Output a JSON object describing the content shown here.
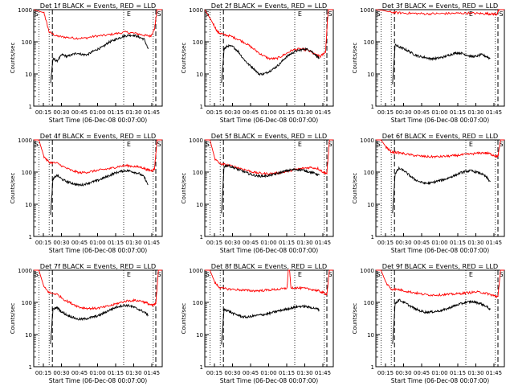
{
  "chart_data": [
    {
      "type": "line",
      "title": "Det 1f BLACK = Events, RED = LLD",
      "ylabel": "Counts/sec",
      "xlabel": "Start Time (06-Dec-08 00:07:00)",
      "yscale": "log",
      "ylim": [
        1,
        1000
      ],
      "xlim": [
        "00:07",
        "01:48"
      ],
      "x_ticks": [
        "00:15",
        "00:30",
        "00:45",
        "01:00",
        "01:15",
        "01:30",
        "01:45"
      ],
      "y_ticks": [
        "1",
        "10",
        "100",
        "1000"
      ],
      "markers": [
        "S",
        "E",
        "S"
      ],
      "series": [
        {
          "color": "#ff0000",
          "t": [
            0,
            8,
            12,
            18,
            24,
            32,
            40,
            48,
            56,
            64,
            72,
            80,
            86,
            91,
            94,
            96,
            100
          ],
          "v": [
            1000,
            800,
            200,
            150,
            140,
            130,
            130,
            150,
            160,
            180,
            200,
            180,
            160,
            150,
            250,
            1000,
            1000
          ]
        },
        {
          "color": "#000000",
          "t": [
            13,
            15,
            18,
            22,
            26,
            30,
            34,
            38,
            42,
            46,
            50,
            54,
            58,
            62,
            66,
            70,
            74,
            78,
            82,
            86,
            89
          ],
          "v": [
            5,
            30,
            25,
            40,
            35,
            40,
            45,
            40,
            40,
            50,
            60,
            70,
            95,
            110,
            130,
            150,
            160,
            160,
            140,
            120,
            60
          ]
        }
      ]
    },
    {
      "type": "line",
      "title": "Det 2f BLACK = Events, RED = LLD",
      "ylabel": "Counts/sec",
      "xlabel": "Start Time (06-Dec-08 00:07:00)",
      "yscale": "log",
      "ylim": [
        1,
        1000
      ],
      "xlim": [
        "00:07",
        "01:48"
      ],
      "x_ticks": [
        "00:15",
        "00:30",
        "00:45",
        "01:00",
        "01:15",
        "01:30",
        "01:45"
      ],
      "y_ticks": [
        "1",
        "10",
        "100",
        "1000"
      ],
      "markers": [
        "S",
        "E",
        "S"
      ],
      "series": [
        {
          "color": "#ff0000",
          "t": [
            0,
            6,
            10,
            14,
            20,
            26,
            32,
            38,
            44,
            50,
            56,
            62,
            68,
            74,
            80,
            86,
            90,
            94,
            96,
            100
          ],
          "v": [
            1000,
            400,
            200,
            170,
            150,
            120,
            90,
            60,
            40,
            30,
            30,
            40,
            55,
            60,
            55,
            40,
            35,
            50,
            1000,
            1000
          ]
        },
        {
          "color": "#000000",
          "t": [
            13,
            15,
            18,
            22,
            26,
            30,
            34,
            38,
            42,
            46,
            50,
            54,
            58,
            62,
            66,
            70,
            74,
            78,
            82,
            86,
            89
          ],
          "v": [
            5,
            60,
            75,
            70,
            50,
            30,
            20,
            15,
            10,
            10,
            12,
            15,
            20,
            30,
            40,
            50,
            55,
            60,
            55,
            40,
            30
          ]
        }
      ]
    },
    {
      "type": "line",
      "title": "Det 3f BLACK = Events, RED = LLD",
      "ylabel": "Counts/sec",
      "xlabel": "Start Time (06-Dec-08 00:07:00)",
      "yscale": "log",
      "ylim": [
        1,
        1000
      ],
      "xlim": [
        "00:07",
        "01:48"
      ],
      "x_ticks": [
        "00:15",
        "00:30",
        "00:45",
        "01:00",
        "01:15",
        "01:30",
        "01:45"
      ],
      "y_ticks": [
        "1",
        "10",
        "100",
        "1000"
      ],
      "markers": [
        "S",
        "E",
        "S"
      ],
      "series": [
        {
          "color": "#ff0000",
          "t": [
            0,
            6,
            10,
            16,
            24,
            32,
            40,
            48,
            56,
            64,
            72,
            80,
            86,
            90,
            94,
            96,
            100
          ],
          "v": [
            1000,
            950,
            850,
            800,
            780,
            760,
            740,
            750,
            760,
            770,
            780,
            760,
            750,
            740,
            720,
            1000,
            1000
          ]
        },
        {
          "color": "#000000",
          "t": [
            13,
            15,
            18,
            22,
            26,
            30,
            34,
            38,
            42,
            46,
            50,
            54,
            58,
            62,
            66,
            70,
            74,
            78,
            82,
            86,
            89
          ],
          "v": [
            5,
            80,
            70,
            60,
            50,
            40,
            35,
            33,
            30,
            30,
            32,
            35,
            40,
            45,
            45,
            40,
            35,
            35,
            40,
            35,
            30
          ]
        }
      ]
    },
    {
      "type": "line",
      "title": "Det 4f BLACK = Events, RED = LLD",
      "ylabel": "Counts/sec",
      "xlabel": "Start Time (06-Dec-08 00:07:00)",
      "yscale": "log",
      "ylim": [
        1,
        1000
      ],
      "xlim": [
        "00:07",
        "01:48"
      ],
      "x_ticks": [
        "00:15",
        "00:30",
        "00:45",
        "01:00",
        "01:15",
        "01:30",
        "01:45"
      ],
      "y_ticks": [
        "1",
        "10",
        "100",
        "1000"
      ],
      "markers": [
        "S",
        "E",
        "S"
      ],
      "series": [
        {
          "color": "#ff0000",
          "t": [
            0,
            4,
            8,
            12,
            18,
            24,
            30,
            36,
            42,
            48,
            54,
            60,
            66,
            72,
            78,
            84,
            88,
            92,
            94,
            96,
            100
          ],
          "v": [
            1000,
            1000,
            300,
            200,
            190,
            140,
            110,
            95,
            100,
            110,
            120,
            130,
            150,
            160,
            150,
            140,
            120,
            110,
            130,
            1000,
            1000
          ]
        },
        {
          "color": "#000000",
          "t": [
            13,
            15,
            18,
            22,
            26,
            30,
            34,
            38,
            42,
            46,
            50,
            54,
            58,
            62,
            66,
            70,
            74,
            78,
            82,
            86,
            89
          ],
          "v": [
            5,
            60,
            80,
            60,
            50,
            45,
            40,
            40,
            45,
            50,
            55,
            65,
            75,
            90,
            100,
            110,
            110,
            100,
            90,
            70,
            40
          ]
        }
      ]
    },
    {
      "type": "line",
      "title": "Det 5f BLACK = Events, RED = LLD",
      "ylabel": "Counts/sec",
      "xlabel": "Start Time (06-Dec-08 00:07:00)",
      "yscale": "log",
      "ylim": [
        1,
        1000
      ],
      "xlim": [
        "00:07",
        "01:48"
      ],
      "x_ticks": [
        "00:15",
        "00:30",
        "00:45",
        "01:00",
        "01:15",
        "01:30",
        "01:45"
      ],
      "y_ticks": [
        "1",
        "10",
        "100",
        "1000"
      ],
      "markers": [
        "S",
        "E",
        "S"
      ],
      "series": [
        {
          "color": "#ff0000",
          "t": [
            0,
            4,
            8,
            12,
            16,
            22,
            28,
            34,
            40,
            46,
            52,
            58,
            64,
            70,
            76,
            82,
            88,
            92,
            95,
            97,
            100
          ],
          "v": [
            1000,
            1000,
            250,
            180,
            170,
            150,
            130,
            110,
            95,
            90,
            90,
            95,
            105,
            120,
            130,
            140,
            130,
            100,
            90,
            1000,
            1000
          ]
        },
        {
          "color": "#000000",
          "t": [
            13,
            15,
            18,
            22,
            26,
            30,
            34,
            38,
            42,
            46,
            50,
            54,
            58,
            62,
            66,
            70,
            74,
            78,
            82,
            86,
            89
          ],
          "v": [
            5,
            150,
            160,
            140,
            120,
            105,
            90,
            80,
            75,
            75,
            78,
            85,
            95,
            105,
            115,
            120,
            120,
            110,
            100,
            90,
            80
          ]
        }
      ]
    },
    {
      "type": "line",
      "title": "Det 6f BLACK = Events, RED = LLD",
      "ylabel": "Counts/sec",
      "xlabel": "Start Time (06-Dec-08 00:07:00)",
      "yscale": "log",
      "ylim": [
        1,
        1000
      ],
      "xlim": [
        "00:07",
        "01:48"
      ],
      "x_ticks": [
        "00:15",
        "00:30",
        "00:45",
        "01:00",
        "01:15",
        "01:30",
        "01:45"
      ],
      "y_ticks": [
        "1",
        "10",
        "100",
        "1000"
      ],
      "markers": [
        "S",
        "E",
        "S"
      ],
      "series": [
        {
          "color": "#ff0000",
          "t": [
            0,
            4,
            8,
            12,
            18,
            24,
            30,
            36,
            42,
            48,
            54,
            60,
            66,
            72,
            78,
            84,
            88,
            92,
            95,
            97,
            100
          ],
          "v": [
            1000,
            1000,
            600,
            420,
            400,
            360,
            330,
            310,
            300,
            300,
            310,
            320,
            340,
            360,
            380,
            400,
            380,
            330,
            300,
            1000,
            1000
          ]
        },
        {
          "color": "#000000",
          "t": [
            13,
            15,
            18,
            22,
            26,
            30,
            34,
            38,
            42,
            46,
            50,
            54,
            58,
            62,
            66,
            70,
            74,
            78,
            82,
            86,
            89
          ],
          "v": [
            5,
            90,
            130,
            110,
            80,
            60,
            50,
            45,
            45,
            50,
            55,
            60,
            70,
            80,
            95,
            105,
            110,
            100,
            90,
            70,
            50
          ]
        }
      ]
    },
    {
      "type": "line",
      "title": "Det 7f BLACK = Events, RED = LLD",
      "ylabel": "Counts/sec",
      "xlabel": "Start Time (06-Dec-08 00:07:00)",
      "yscale": "log",
      "ylim": [
        1,
        1000
      ],
      "xlim": [
        "00:07",
        "01:48"
      ],
      "x_ticks": [
        "00:15",
        "00:30",
        "00:45",
        "01:00",
        "01:15",
        "01:30",
        "01:45"
      ],
      "y_ticks": [
        "1",
        "10",
        "100",
        "1000"
      ],
      "markers": [
        "S",
        "E",
        "S"
      ],
      "series": [
        {
          "color": "#ff0000",
          "t": [
            0,
            4,
            8,
            12,
            18,
            24,
            30,
            36,
            42,
            48,
            54,
            60,
            66,
            72,
            78,
            84,
            88,
            92,
            95,
            97,
            100
          ],
          "v": [
            1000,
            1000,
            300,
            200,
            180,
            120,
            90,
            70,
            65,
            65,
            70,
            80,
            95,
            110,
            115,
            110,
            95,
            80,
            90,
            1000,
            1000
          ]
        },
        {
          "color": "#000000",
          "t": [
            13,
            15,
            18,
            22,
            26,
            30,
            34,
            38,
            42,
            46,
            50,
            54,
            58,
            62,
            66,
            70,
            74,
            78,
            82,
            86,
            89
          ],
          "v": [
            5,
            60,
            70,
            50,
            40,
            35,
            30,
            30,
            32,
            35,
            38,
            45,
            55,
            65,
            75,
            80,
            80,
            70,
            60,
            50,
            40
          ]
        }
      ]
    },
    {
      "type": "line",
      "title": "Det 8f BLACK = Events, RED = LLD",
      "ylabel": "Counts/sec",
      "xlabel": "Start Time (06-Dec-08 00:07:00)",
      "yscale": "log",
      "ylim": [
        1,
        1000
      ],
      "xlim": [
        "00:07",
        "01:48"
      ],
      "x_ticks": [
        "00:15",
        "00:30",
        "00:45",
        "01:00",
        "01:15",
        "01:30",
        "01:45"
      ],
      "y_ticks": [
        "1",
        "10",
        "100",
        "1000"
      ],
      "markers": [
        "S",
        "E",
        "S"
      ],
      "series": [
        {
          "color": "#ff0000",
          "t": [
            0,
            4,
            8,
            12,
            18,
            24,
            30,
            36,
            42,
            48,
            54,
            60,
            64,
            65,
            66,
            67,
            72,
            78,
            84,
            88,
            92,
            95,
            97,
            100
          ],
          "v": [
            1000,
            1000,
            400,
            280,
            260,
            250,
            240,
            230,
            230,
            240,
            250,
            260,
            280,
            1000,
            1000,
            290,
            280,
            270,
            250,
            230,
            200,
            180,
            1000,
            1000
          ]
        },
        {
          "color": "#000000",
          "t": [
            13,
            15,
            18,
            22,
            26,
            30,
            34,
            38,
            42,
            46,
            50,
            54,
            58,
            62,
            66,
            70,
            74,
            78,
            82,
            86,
            89
          ],
          "v": [
            5,
            60,
            55,
            45,
            40,
            35,
            35,
            38,
            40,
            42,
            45,
            50,
            55,
            60,
            65,
            70,
            75,
            75,
            70,
            65,
            60
          ]
        }
      ]
    },
    {
      "type": "line",
      "title": "Det 9f BLACK = Events, RED = LLD",
      "ylabel": "Counts/sec",
      "xlabel": "Start Time (06-Dec-08 00:07:00)",
      "yscale": "log",
      "ylim": [
        1,
        1000
      ],
      "xlim": [
        "00:07",
        "01:48"
      ],
      "x_ticks": [
        "00:15",
        "00:30",
        "00:45",
        "01:00",
        "01:15",
        "01:30",
        "01:45"
      ],
      "y_ticks": [
        "1",
        "10",
        "100",
        "1000"
      ],
      "markers": [
        "S",
        "E",
        "S"
      ],
      "series": [
        {
          "color": "#ff0000",
          "t": [
            0,
            4,
            8,
            12,
            18,
            24,
            30,
            36,
            42,
            48,
            54,
            60,
            66,
            72,
            78,
            84,
            88,
            92,
            95,
            97,
            100
          ],
          "v": [
            1000,
            1000,
            400,
            260,
            250,
            220,
            200,
            180,
            170,
            170,
            175,
            180,
            190,
            200,
            210,
            200,
            180,
            160,
            150,
            1000,
            1000
          ]
        },
        {
          "color": "#000000",
          "t": [
            13,
            15,
            18,
            22,
            26,
            30,
            34,
            38,
            42,
            46,
            50,
            54,
            58,
            62,
            66,
            70,
            74,
            78,
            82,
            86,
            89
          ],
          "v": [
            5,
            90,
            120,
            100,
            80,
            65,
            55,
            50,
            50,
            52,
            55,
            60,
            70,
            80,
            90,
            100,
            105,
            100,
            90,
            75,
            60
          ]
        }
      ]
    }
  ]
}
